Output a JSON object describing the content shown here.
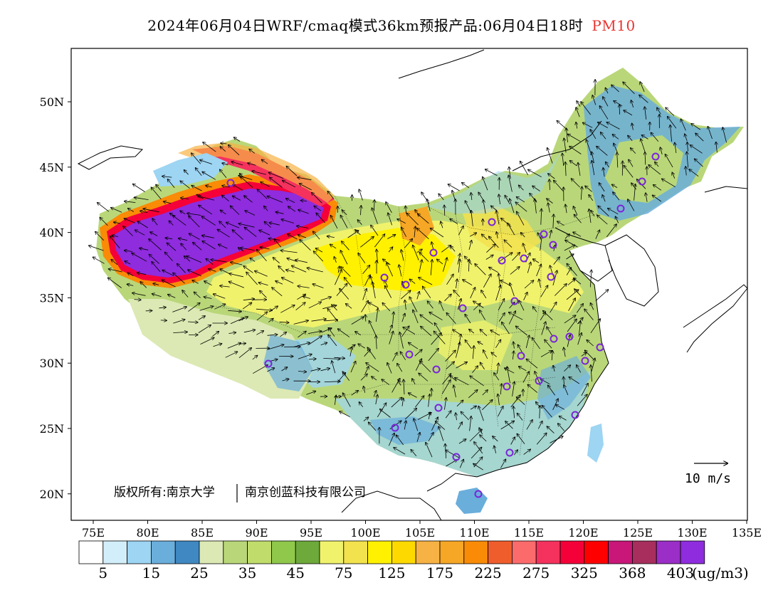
{
  "title": {
    "main": "2024年06月04日WRF/cmaq模式36km预报产品:06月04日18时",
    "variable": "PM10"
  },
  "axes": {
    "lon_ticks": [
      "75E",
      "80E",
      "85E",
      "90E",
      "95E",
      "100E",
      "105E",
      "110E",
      "115E",
      "120E",
      "125E",
      "130E",
      "135E"
    ],
    "lat_ticks": [
      "50N",
      "45N",
      "40N",
      "35N",
      "30N",
      "25N",
      "20N"
    ]
  },
  "copyright": {
    "line1": "版权所有:南京大学",
    "line2": "南京创蓝科技有限公司"
  },
  "wind_reference": {
    "label": "10 m/s",
    "speed_ms": 10
  },
  "legend": {
    "unit": "(ug/m3)",
    "labels": [
      "5",
      "15",
      "25",
      "35",
      "45",
      "75",
      "125",
      "175",
      "225",
      "275",
      "325",
      "368",
      "403"
    ],
    "colors": [
      "#ffffff",
      "#d3eefb",
      "#9dd5f3",
      "#6aaedb",
      "#3f88c2",
      "#dce9b4",
      "#b9d779",
      "#c0dd6c",
      "#90c84b",
      "#6ea93b",
      "#f0f26c",
      "#f2e24d",
      "#fff100",
      "#fdd900",
      "#f6b244",
      "#f6a725",
      "#f98b07",
      "#f05d2c",
      "#fc6b6c",
      "#f4325d",
      "#f50038",
      "#ff0000",
      "#c81778",
      "#a72e5d",
      "#9a2ec6",
      "#8e2cde"
    ]
  },
  "map": {
    "region": "China",
    "palette": {
      "high": "#8e2cde",
      "very_high": "#c81778",
      "red": "#f50038",
      "orange": "#f98b07",
      "yellow": "#fff100",
      "light_yellow": "#f0f26c",
      "green": "#b9d779",
      "dark_green": "#90c84b",
      "pale_green": "#dce9b4",
      "blue": "#6aaedb",
      "light_blue": "#9dd5f3",
      "station_marker": "#7a25d8"
    }
  }
}
